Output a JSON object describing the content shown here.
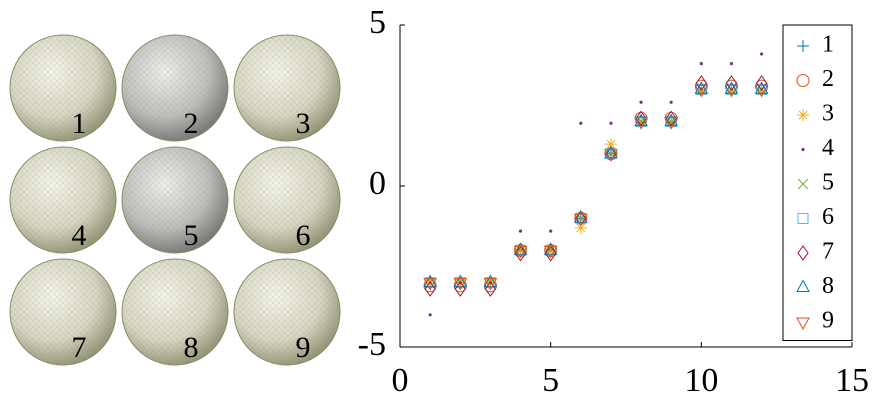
{
  "images": {
    "labels": [
      "1",
      "2",
      "3",
      "4",
      "5",
      "6",
      "7",
      "8",
      "9"
    ]
  },
  "chart_data": {
    "type": "scatter",
    "x": [
      1,
      2,
      3,
      4,
      5,
      6,
      7,
      8,
      9,
      10,
      11,
      12
    ],
    "xlim": [
      0,
      15
    ],
    "xticks": [
      0,
      5,
      10,
      15
    ],
    "ylim": [
      -5,
      5
    ],
    "yticks": [
      -5,
      0,
      5
    ],
    "legend": "upper right",
    "series": [
      {
        "name": "1",
        "color": "#0072BD",
        "marker": "plus",
        "values": [
          -3,
          -3,
          -3,
          -2,
          -2,
          -1,
          1,
          2,
          2,
          3,
          3,
          3
        ]
      },
      {
        "name": "2",
        "color": "#D95319",
        "marker": "circle",
        "values": [
          -3.1,
          -3.1,
          -3.1,
          -2,
          -2,
          -1,
          1,
          2.1,
          2.1,
          3.1,
          3.1,
          3.1
        ]
      },
      {
        "name": "3",
        "color": "#EDB120",
        "marker": "star",
        "values": [
          -3,
          -3,
          -3,
          -2,
          -2,
          -1.3,
          1.3,
          2,
          2,
          3,
          3,
          3
        ]
      },
      {
        "name": "4",
        "color": "#7E2F8E",
        "marker": "dot",
        "values": [
          -4,
          -3,
          -3,
          -1.4,
          -1.4,
          1.95,
          1.95,
          2.6,
          2.6,
          3.8,
          3.8,
          4.1
        ]
      },
      {
        "name": "5",
        "color": "#77AC30",
        "marker": "cross",
        "values": [
          -3,
          -3,
          -3,
          -2,
          -2,
          -1,
          1,
          2,
          2,
          3,
          3,
          3
        ]
      },
      {
        "name": "6",
        "color": "#4DBEEE",
        "marker": "square",
        "values": [
          -3,
          -3,
          -3,
          -2,
          -2,
          -1,
          1,
          2,
          2,
          3,
          3,
          3
        ]
      },
      {
        "name": "7",
        "color": "#A2142F",
        "marker": "diamond",
        "values": [
          -3.2,
          -3.2,
          -3.2,
          -2.1,
          -2.1,
          -1,
          1,
          2.1,
          2.1,
          3.2,
          3.2,
          3.2
        ]
      },
      {
        "name": "8",
        "color": "#0072BD",
        "marker": "triangle-up",
        "values": [
          -3,
          -3,
          -3,
          -2,
          -2,
          -1,
          1,
          2,
          2,
          3,
          3,
          3
        ]
      },
      {
        "name": "9",
        "color": "#D95319",
        "marker": "triangle-down",
        "values": [
          -3,
          -3,
          -3,
          -2,
          -2,
          -1,
          1,
          2,
          2,
          3,
          3,
          3
        ]
      }
    ]
  }
}
